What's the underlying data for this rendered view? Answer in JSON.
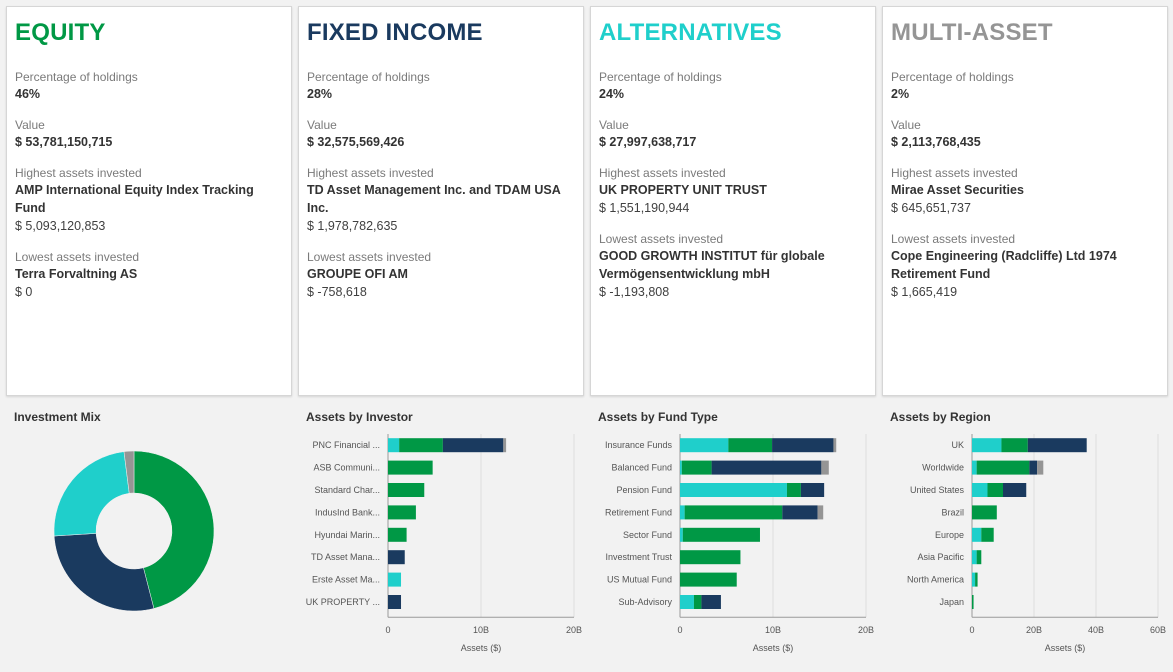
{
  "colors": {
    "equity": "#009845",
    "fixed_income": "#1a3a5f",
    "alternatives": "#1fcfcb",
    "multi_asset": "#959595"
  },
  "cards": [
    {
      "key": "equity",
      "title": "EQUITY",
      "color": "#009845",
      "pct_label": "Percentage of holdings",
      "pct": "46%",
      "value_label": "Value",
      "value": "$ 53,781,150,715",
      "high_label": "Highest assets invested",
      "high_name": "AMP International Equity Index Tracking Fund",
      "high_value": "$ 5,093,120,853",
      "low_label": "Lowest assets invested",
      "low_name": "Terra Forvaltning AS",
      "low_value": "$ 0"
    },
    {
      "key": "fixed_income",
      "title": "FIXED INCOME",
      "color": "#1a3a5f",
      "pct_label": "Percentage of holdings",
      "pct": "28%",
      "value_label": "Value",
      "value": "$ 32,575,569,426",
      "high_label": "Highest assets invested",
      "high_name": "TD Asset Management Inc. and TDAM USA Inc.",
      "high_value": "$ 1,978,782,635",
      "low_label": "Lowest assets invested",
      "low_name": "GROUPE OFI AM",
      "low_value": "$ -758,618"
    },
    {
      "key": "alternatives",
      "title": "ALTERNATIVES",
      "color": "#1fcfcb",
      "pct_label": "Percentage of holdings",
      "pct": "24%",
      "value_label": "Value",
      "value": "$ 27,997,638,717",
      "high_label": "Highest assets invested",
      "high_name": "UK PROPERTY UNIT TRUST",
      "high_value": "$ 1,551,190,944",
      "low_label": "Lowest assets invested",
      "low_name": "GOOD GROWTH INSTITUT für globale Vermögensentwicklung mbH",
      "low_value": "$ -1,193,808"
    },
    {
      "key": "multi_asset",
      "title": "MULTI-ASSET",
      "color": "#959595",
      "pct_label": "Percentage of holdings",
      "pct": "2%",
      "value_label": "Value",
      "value": "$ 2,113,768,435",
      "high_label": "Highest assets invested",
      "high_name": "Mirae Asset Securities",
      "high_value": "$ 645,651,737",
      "low_label": "Lowest assets invested",
      "low_name": "Cope Engineering (Radcliffe) Ltd 1974 Retirement Fund",
      "low_value": "$ 1,665,419"
    }
  ],
  "panels": {
    "mix": "Investment Mix",
    "investor": "Assets by Investor",
    "fund_type": "Assets by Fund Type",
    "region": "Assets by Region"
  },
  "chart_data": [
    {
      "type": "pie",
      "title": "Investment Mix",
      "donut": true,
      "slices": [
        {
          "name": "Equity",
          "value": 46,
          "color": "#009845"
        },
        {
          "name": "Fixed Income",
          "value": 28,
          "color": "#1a3a5f"
        },
        {
          "name": "Alternatives",
          "value": 24,
          "color": "#1fcfcb"
        },
        {
          "name": "Multi-Asset",
          "value": 2,
          "color": "#959595"
        }
      ]
    },
    {
      "type": "bar",
      "orientation": "horizontal",
      "stacked": true,
      "title": "Assets by Investor",
      "xlabel": "Assets ($)",
      "xlim": [
        0,
        20
      ],
      "ticks": [
        0,
        10,
        20
      ],
      "tick_labels": [
        "0",
        "10B",
        "20B"
      ],
      "categories": [
        "PNC Financial ...",
        "ASB Communi...",
        "Standard Char...",
        "IndusInd Bank...",
        "Hyundai Marin...",
        "TD Asset Mana...",
        "Erste Asset Ma...",
        "UK PROPERTY ..."
      ],
      "series": [
        {
          "color": "#1fcfcb",
          "values": [
            1.2,
            0,
            0,
            0,
            0,
            0,
            1.4,
            0
          ]
        },
        {
          "color": "#009845",
          "values": [
            4.7,
            4.8,
            3.9,
            3.0,
            2.0,
            0,
            0,
            0
          ]
        },
        {
          "color": "#1a3a5f",
          "values": [
            6.5,
            0,
            0,
            0,
            0,
            1.8,
            0,
            1.4
          ]
        },
        {
          "color": "#959595",
          "values": [
            0.3,
            0,
            0,
            0,
            0,
            0,
            0,
            0
          ]
        }
      ]
    },
    {
      "type": "bar",
      "orientation": "horizontal",
      "stacked": true,
      "title": "Assets by Fund Type",
      "xlabel": "Assets ($)",
      "xlim": [
        0,
        20
      ],
      "ticks": [
        0,
        10,
        20
      ],
      "tick_labels": [
        "0",
        "10B",
        "20B"
      ],
      "categories": [
        "Insurance Funds",
        "Balanced Fund",
        "Pension Fund",
        "Retirement Fund",
        "Sector Fund",
        "Investment Trust",
        "US Mutual Fund",
        "Sub-Advisory"
      ],
      "series": [
        {
          "color": "#1fcfcb",
          "values": [
            5.2,
            0.2,
            11.5,
            0.5,
            0.3,
            0,
            0,
            1.5
          ]
        },
        {
          "color": "#009845",
          "values": [
            4.7,
            3.2,
            1.5,
            10.5,
            8.3,
            6.5,
            6.1,
            0.8
          ]
        },
        {
          "color": "#1a3a5f",
          "values": [
            6.6,
            11.8,
            2.5,
            3.8,
            0,
            0,
            0,
            2.1
          ]
        },
        {
          "color": "#959595",
          "values": [
            0.3,
            0.8,
            0,
            0.6,
            0,
            0,
            0,
            0
          ]
        }
      ]
    },
    {
      "type": "bar",
      "orientation": "horizontal",
      "stacked": true,
      "title": "Assets by Region",
      "xlabel": "Assets ($)",
      "xlim": [
        0,
        60
      ],
      "ticks": [
        0,
        20,
        40,
        60
      ],
      "tick_labels": [
        "0",
        "20B",
        "40B",
        "60B"
      ],
      "categories": [
        "UK",
        "Worldwide",
        "United States",
        "Brazil",
        "Europe",
        "Asia Pacific",
        "North America",
        "Japan"
      ],
      "series": [
        {
          "color": "#1fcfcb",
          "values": [
            9.5,
            1.5,
            5.0,
            0,
            3.0,
            1.5,
            1.0,
            0
          ]
        },
        {
          "color": "#009845",
          "values": [
            8.5,
            17.0,
            5.0,
            8.0,
            4.0,
            1.5,
            0.8,
            0.5
          ]
        },
        {
          "color": "#1a3a5f",
          "values": [
            19.0,
            2.5,
            7.5,
            0,
            0,
            0,
            0,
            0
          ]
        },
        {
          "color": "#959595",
          "values": [
            0,
            2.0,
            0,
            0,
            0,
            0,
            0,
            0
          ]
        }
      ]
    }
  ]
}
